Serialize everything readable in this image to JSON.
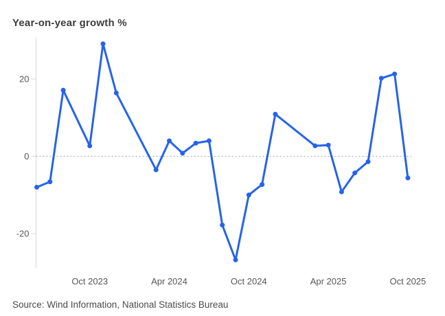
{
  "chart_data": {
    "type": "line",
    "title": "Year-on-year growth %",
    "source": "Source: Wind Information, National Statistics Bureau",
    "xlabel": "",
    "ylabel": "Year-on-year growth %",
    "ylim": [
      -30,
      31
    ],
    "grid": "zero-line-only",
    "legend_position": "none",
    "y_ticks": [
      {
        "label": "20",
        "value": 20
      },
      {
        "label": "0",
        "value": 0
      },
      {
        "label": "-20",
        "value": -20
      }
    ],
    "x_ticks": [
      {
        "label": "Oct 2023",
        "month_index": 4
      },
      {
        "label": "Apr 2024",
        "month_index": 10
      },
      {
        "label": "Oct 2024",
        "month_index": 16
      },
      {
        "label": "Apr 2025",
        "month_index": 22
      },
      {
        "label": "Oct 2025",
        "month_index": 28
      }
    ],
    "series": [
      {
        "name": "Year-on-year growth %",
        "points": [
          {
            "month": "Jun 2023",
            "month_index": 0,
            "value": -8.0
          },
          {
            "month": "Jul 2023",
            "month_index": 1,
            "value": -6.6
          },
          {
            "month": "Aug 2023",
            "month_index": 2,
            "value": 17.1
          },
          {
            "month": "Oct 2023",
            "month_index": 4,
            "value": 2.7
          },
          {
            "month": "Nov 2023",
            "month_index": 5,
            "value": 29.1
          },
          {
            "month": "Dec 2023",
            "month_index": 6,
            "value": 16.4
          },
          {
            "month": "Mar 2024",
            "month_index": 9,
            "value": -3.5
          },
          {
            "month": "Apr 2024",
            "month_index": 10,
            "value": 4.0
          },
          {
            "month": "May 2024",
            "month_index": 11,
            "value": 0.8
          },
          {
            "month": "Jun 2024",
            "month_index": 12,
            "value": 3.4
          },
          {
            "month": "Jul 2024",
            "month_index": 13,
            "value": 4.0
          },
          {
            "month": "Aug 2024",
            "month_index": 14,
            "value": -17.8
          },
          {
            "month": "Sep 2024",
            "month_index": 15,
            "value": -26.8
          },
          {
            "month": "Oct 2024",
            "month_index": 16,
            "value": -10.0
          },
          {
            "month": "Nov 2024",
            "month_index": 17,
            "value": -7.3
          },
          {
            "month": "Dec 2024",
            "month_index": 18,
            "value": 10.9
          },
          {
            "month": "Mar 2025",
            "month_index": 21,
            "value": 2.7
          },
          {
            "month": "Apr 2025",
            "month_index": 22,
            "value": 2.9
          },
          {
            "month": "May 2025",
            "month_index": 23,
            "value": -9.2
          },
          {
            "month": "Jun 2025",
            "month_index": 24,
            "value": -4.3
          },
          {
            "month": "Jul 2025",
            "month_index": 25,
            "value": -1.4
          },
          {
            "month": "Aug 2025",
            "month_index": 26,
            "value": 20.2
          },
          {
            "month": "Sep 2025",
            "month_index": 27,
            "value": 21.3
          },
          {
            "month": "Oct 2025",
            "month_index": 28,
            "value": -5.6
          }
        ]
      }
    ],
    "colors": {
      "line": "#2563eb",
      "marker": "#2563eb",
      "zero_line": "#a6a6a6",
      "axis": "#d8d8d8",
      "tick_text": "#555555",
      "title_text": "#3d3d3d",
      "source_text": "#4a4a4a"
    }
  }
}
